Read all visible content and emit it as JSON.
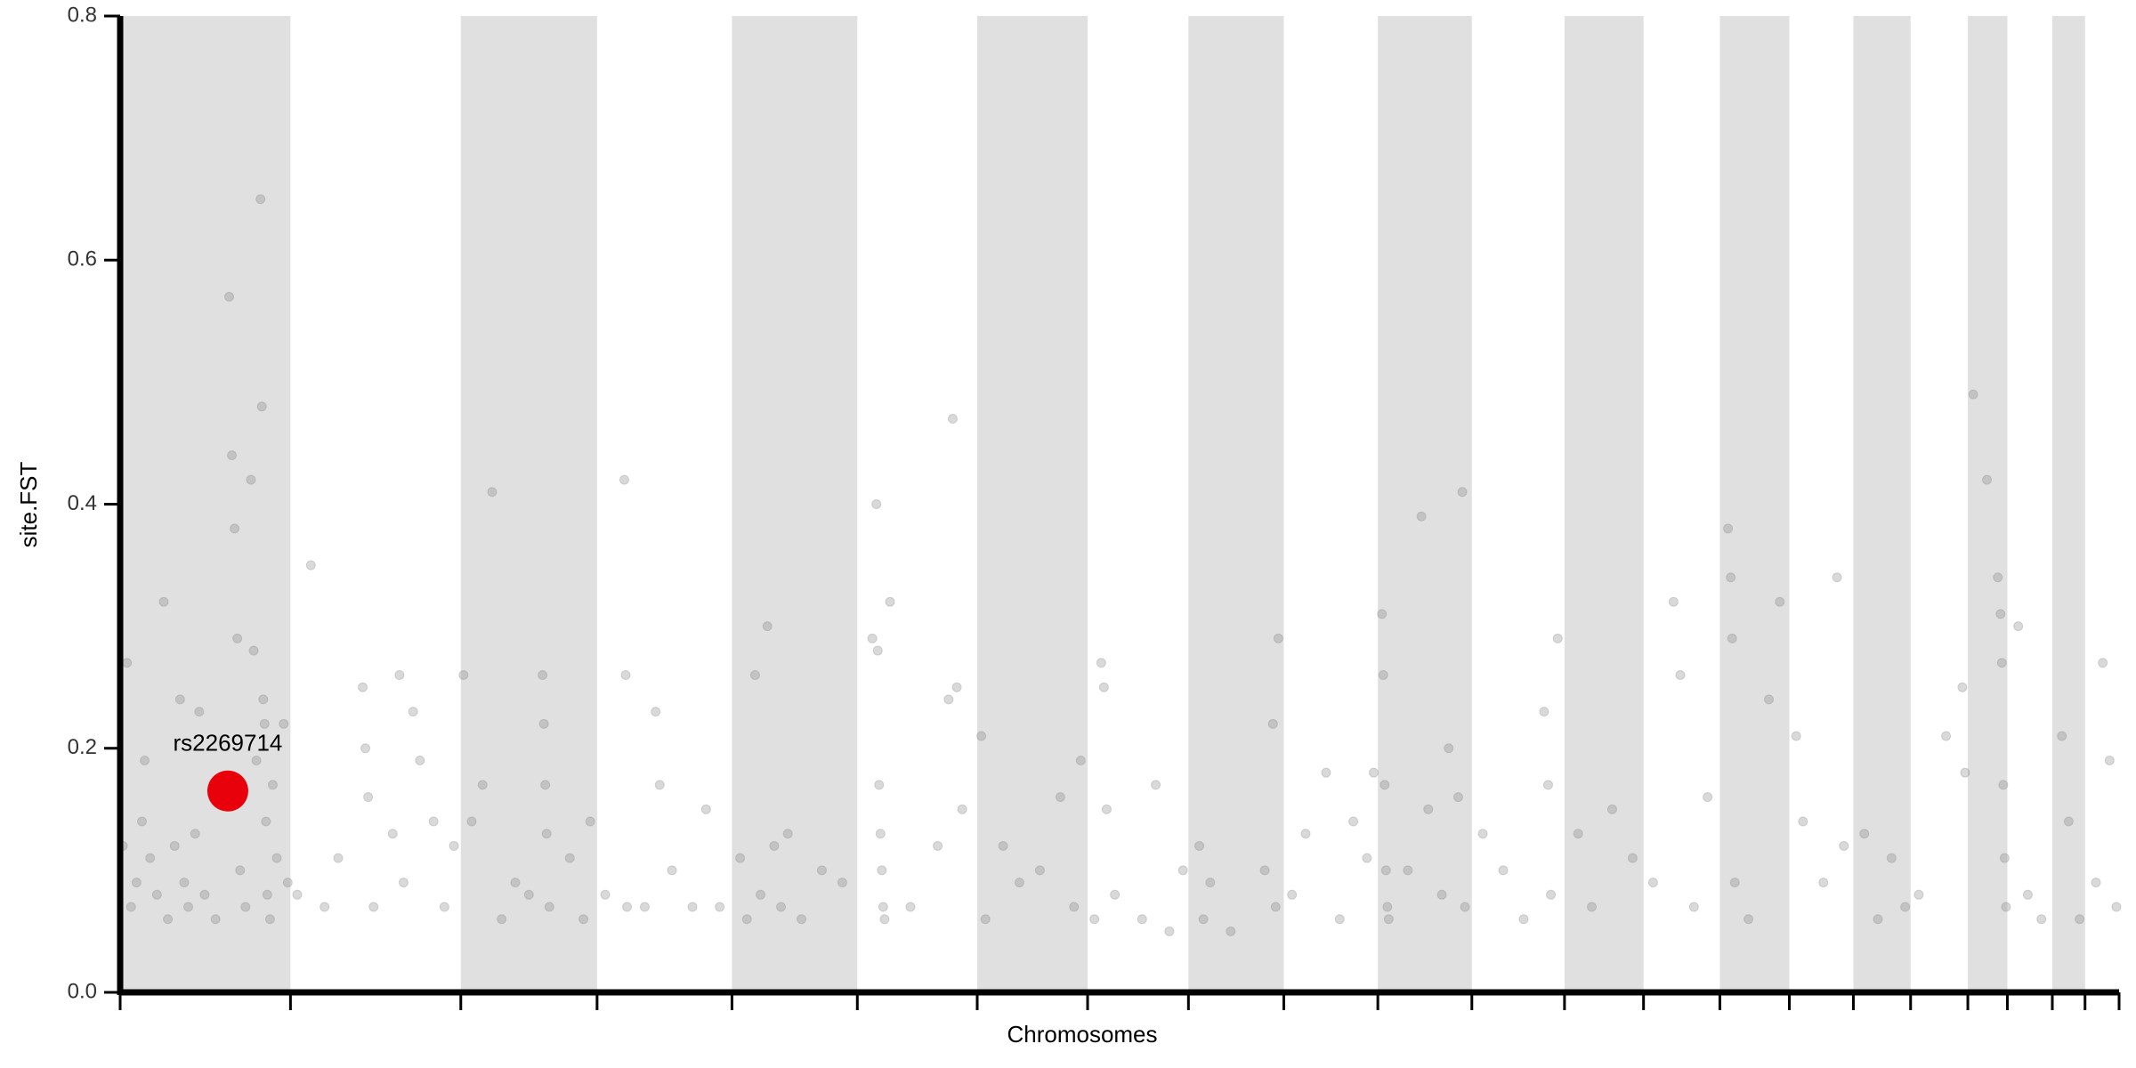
{
  "chart_data": {
    "type": "scatter",
    "x_label": "Chromosomes",
    "y_label": "site.FST",
    "xlim": [
      0,
      1467
    ],
    "ylim": [
      0,
      0.8
    ],
    "xticks": [
      0,
      125,
      250,
      350,
      449,
      541,
      629,
      710,
      784,
      854,
      923,
      992,
      1060,
      1118,
      1174,
      1225,
      1272,
      1314,
      1356,
      1385,
      1418,
      1442,
      1467
    ],
    "yticks": [
      {
        "value": 0,
        "label": "0.0"
      },
      0.2,
      0.4,
      0.6,
      0.8
    ],
    "shade_alternate": true,
    "shade_color": "#e0e0e0",
    "color": "#808080",
    "opacity": 0.3,
    "x": [
      2,
      5,
      8,
      12,
      16,
      18,
      22,
      27,
      32,
      35,
      40,
      44,
      47,
      50,
      55,
      58,
      62,
      70,
      80,
      82,
      84,
      86,
      88,
      92,
      96,
      98,
      100,
      103,
      104,
      105,
      106,
      107,
      108,
      110,
      112,
      115,
      120,
      123,
      130,
      140,
      150,
      160,
      178,
      180,
      182,
      186,
      200,
      205,
      208,
      215,
      220,
      230,
      238,
      245,
      252,
      258,
      266,
      273,
      280,
      290,
      300,
      310,
      311,
      312,
      313,
      315,
      330,
      340,
      345,
      356,
      370,
      371,
      372,
      385,
      393,
      396,
      405,
      420,
      430,
      440,
      455,
      460,
      466,
      470,
      475,
      480,
      485,
      490,
      500,
      515,
      530,
      552,
      555,
      556,
      557,
      558,
      559,
      560,
      561,
      565,
      580,
      600,
      608,
      611,
      614,
      618,
      632,
      635,
      648,
      660,
      675,
      690,
      700,
      705,
      715,
      720,
      722,
      724,
      730,
      750,
      760,
      770,
      780,
      792,
      795,
      800,
      815,
      840,
      846,
      848,
      850,
      860,
      870,
      885,
      895,
      905,
      915,
      920,
      926,
      927,
      928,
      929,
      930,
      931,
      945,
      955,
      960,
      970,
      975,
      982,
      985,
      987,
      1000,
      1015,
      1030,
      1045,
      1048,
      1050,
      1055,
      1070,
      1080,
      1095,
      1110,
      1125,
      1140,
      1145,
      1155,
      1165,
      1180,
      1182,
      1183,
      1185,
      1195,
      1210,
      1218,
      1230,
      1235,
      1250,
      1260,
      1265,
      1280,
      1290,
      1300,
      1310,
      1320,
      1340,
      1352,
      1354,
      1360,
      1370,
      1378,
      1380,
      1381,
      1382,
      1383,
      1384,
      1393,
      1400,
      1410,
      1425,
      1430,
      1438,
      1450,
      1455,
      1460,
      1465
    ],
    "values": [
      0.12,
      0.27,
      0.07,
      0.09,
      0.14,
      0.19,
      0.11,
      0.08,
      0.32,
      0.06,
      0.12,
      0.24,
      0.09,
      0.07,
      0.13,
      0.23,
      0.08,
      0.06,
      0.57,
      0.44,
      0.38,
      0.29,
      0.1,
      0.07,
      0.42,
      0.28,
      0.19,
      0.65,
      0.48,
      0.24,
      0.22,
      0.14,
      0.08,
      0.06,
      0.17,
      0.11,
      0.22,
      0.09,
      0.08,
      0.35,
      0.07,
      0.11,
      0.25,
      0.2,
      0.16,
      0.07,
      0.13,
      0.26,
      0.09,
      0.23,
      0.19,
      0.14,
      0.07,
      0.12,
      0.26,
      0.14,
      0.17,
      0.41,
      0.06,
      0.09,
      0.08,
      0.26,
      0.22,
      0.17,
      0.13,
      0.07,
      0.11,
      0.06,
      0.14,
      0.08,
      0.42,
      0.26,
      0.07,
      0.07,
      0.23,
      0.17,
      0.1,
      0.07,
      0.15,
      0.07,
      0.11,
      0.06,
      0.26,
      0.08,
      0.3,
      0.12,
      0.07,
      0.13,
      0.06,
      0.1,
      0.09,
      0.29,
      0.4,
      0.28,
      0.17,
      0.13,
      0.1,
      0.07,
      0.06,
      0.32,
      0.07,
      0.12,
      0.24,
      0.47,
      0.25,
      0.15,
      0.21,
      0.06,
      0.12,
      0.09,
      0.1,
      0.16,
      0.07,
      0.19,
      0.06,
      0.27,
      0.25,
      0.15,
      0.08,
      0.06,
      0.17,
      0.05,
      0.1,
      0.12,
      0.06,
      0.09,
      0.05,
      0.1,
      0.22,
      0.07,
      0.29,
      0.08,
      0.13,
      0.18,
      0.06,
      0.14,
      0.11,
      0.18,
      0.31,
      0.26,
      0.17,
      0.1,
      0.07,
      0.06,
      0.1,
      0.39,
      0.15,
      0.08,
      0.2,
      0.16,
      0.41,
      0.07,
      0.13,
      0.1,
      0.06,
      0.23,
      0.17,
      0.08,
      0.29,
      0.13,
      0.07,
      0.15,
      0.11,
      0.09,
      0.32,
      0.26,
      0.07,
      0.16,
      0.38,
      0.34,
      0.29,
      0.09,
      0.06,
      0.24,
      0.32,
      0.21,
      0.14,
      0.09,
      0.34,
      0.12,
      0.13,
      0.06,
      0.11,
      0.07,
      0.08,
      0.21,
      0.25,
      0.18,
      0.49,
      0.42,
      0.34,
      0.31,
      0.27,
      0.17,
      0.11,
      0.07,
      0.3,
      0.08,
      0.06,
      0.21,
      0.14,
      0.06,
      0.09,
      0.27,
      0.19,
      0.07
    ],
    "highlight": {
      "label": "rs2269714",
      "x": 79,
      "value": 0.165,
      "color": "#e8000b"
    }
  }
}
